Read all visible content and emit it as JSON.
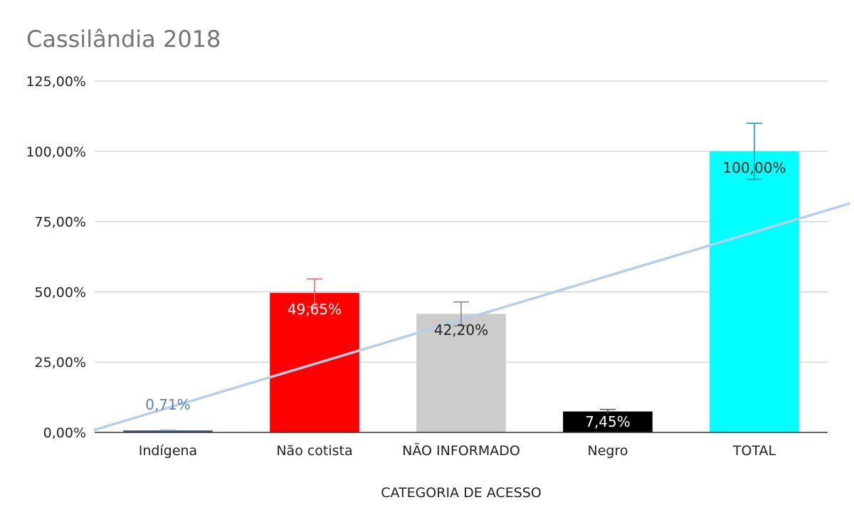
{
  "chart_data": {
    "type": "bar",
    "title": "Cassilândia 2018",
    "xlabel": "CATEGORIA DE ACESSO",
    "ylabel": "",
    "categories": [
      "Indígena",
      "Não cotista",
      "NÃO INFORMADO",
      "Negro",
      "TOTAL"
    ],
    "values": [
      0.71,
      49.65,
      42.2,
      7.45,
      100.0
    ],
    "data_labels": [
      "0,71%",
      "49,65%",
      "42,20%",
      "7,45%",
      "100,00%"
    ],
    "error_bars": [
      0.071,
      4.965,
      4.22,
      0.745,
      10.0
    ],
    "colors": [
      "#3c5a8c",
      "#ff0000",
      "#cccccc",
      "#000000",
      "#00ffff"
    ],
    "label_colors": [
      "#5b7fb8",
      "#ffffff",
      "#222222",
      "#ffffff",
      "#222222"
    ],
    "error_bar_colors": [
      "#8fa8cc",
      "#ff6666",
      "#888888",
      "#555555",
      "#1a9ea6"
    ],
    "ylim": [
      0,
      125
    ],
    "yticks": [
      0,
      25,
      50,
      75,
      100,
      125
    ],
    "ytick_labels": [
      "0,00%",
      "25,00%",
      "50,00%",
      "75,00%",
      "100,00%",
      "125,00%"
    ],
    "grid": true,
    "legend": "none",
    "trendline": {
      "type": "linear",
      "color": "#b8cde6"
    }
  }
}
